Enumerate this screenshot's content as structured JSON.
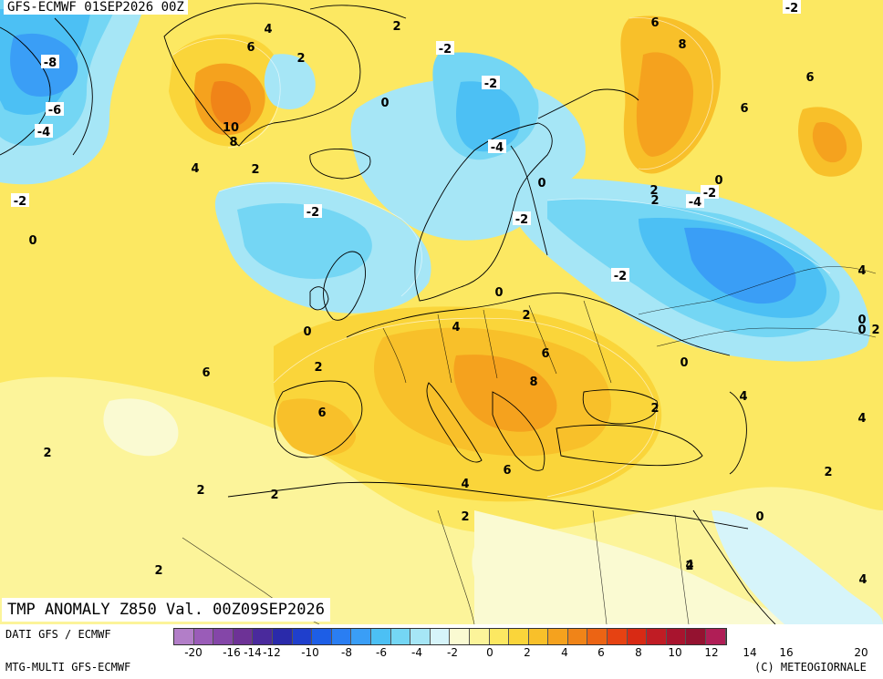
{
  "header": {
    "run_label": "GFS-ECMWF 01SEP2026 00Z"
  },
  "map_title": "TMP ANOMALY Z850 Val. 00Z09SEP2026",
  "footer": {
    "line1": "DATI GFS / ECMWF",
    "line2": "MTG-MULTI GFS-ECMWF",
    "copyright": "(C) METEOGIORNALE"
  },
  "colorbar": {
    "colors": [
      "#b27ec8",
      "#9a5cb8",
      "#8446a8",
      "#6d3296",
      "#4a2a9c",
      "#2a2aaa",
      "#1f3fcc",
      "#1d5ee6",
      "#2a7ef2",
      "#3a9ef6",
      "#4cc0f4",
      "#74d6f4",
      "#a6e6f6",
      "#d6f4fa",
      "#fafad2",
      "#fcf49a",
      "#fce862",
      "#fad53a",
      "#f8c02a",
      "#f5a21e",
      "#f08418",
      "#ec6414",
      "#e64212",
      "#d82a14",
      "#c01c24",
      "#a8142e",
      "#941230",
      "#b01e56"
    ],
    "ticks": [
      "-20",
      "-16",
      "-14",
      "-12",
      "-10",
      "-8",
      "-6",
      "-4",
      "-2",
      "0",
      "2",
      "4",
      "6",
      "8",
      "10",
      "12",
      "14",
      "16",
      "20"
    ]
  },
  "contour_labels": [
    "-8",
    "-6",
    "-4",
    "6",
    "4",
    "2",
    "10",
    "8",
    "2",
    "0",
    "-2",
    "-2",
    "-4",
    "-2",
    "8",
    "6",
    "6",
    "6",
    "4",
    "2",
    "-2",
    "-4",
    "2",
    "-2",
    "0",
    "0",
    "-2",
    "0",
    "-2",
    "0",
    "4",
    "2",
    "0",
    "4",
    "2",
    "6",
    "8",
    "6",
    "0",
    "4",
    "2",
    "4",
    "6",
    "2",
    "2",
    "4",
    "6",
    "2",
    "2",
    "0",
    "2",
    "2",
    "4",
    "0",
    "2",
    "2",
    "-2",
    "0",
    "4",
    "2"
  ]
}
